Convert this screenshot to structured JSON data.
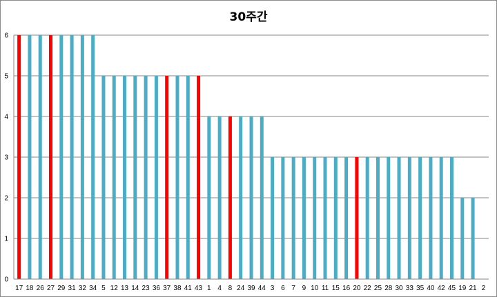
{
  "chart_data": {
    "type": "bar",
    "title": "30주간",
    "xlabel": "",
    "ylabel": "",
    "ylim": [
      0,
      6
    ],
    "yticks": [
      0,
      1,
      2,
      3,
      4,
      5,
      6
    ],
    "grid": true,
    "legend": "none",
    "colors": {
      "default": "#4bacc6",
      "highlight": "#ff0000"
    },
    "categories": [
      "17",
      "18",
      "26",
      "27",
      "29",
      "31",
      "32",
      "34",
      "5",
      "12",
      "13",
      "14",
      "23",
      "36",
      "37",
      "38",
      "41",
      "43",
      "1",
      "4",
      "8",
      "24",
      "39",
      "44",
      "3",
      "6",
      "7",
      "9",
      "10",
      "11",
      "15",
      "16",
      "20",
      "22",
      "25",
      "28",
      "30",
      "33",
      "35",
      "40",
      "42",
      "45",
      "19",
      "21",
      "2"
    ],
    "values": [
      6,
      6,
      6,
      6,
      6,
      6,
      6,
      6,
      5,
      5,
      5,
      5,
      5,
      5,
      5,
      5,
      5,
      5,
      4,
      4,
      4,
      4,
      4,
      4,
      3,
      3,
      3,
      3,
      3,
      3,
      3,
      3,
      3,
      3,
      3,
      3,
      3,
      3,
      3,
      3,
      3,
      3,
      2,
      2,
      0
    ],
    "highlighted": [
      "17",
      "27",
      "37",
      "43",
      "8",
      "20"
    ]
  }
}
